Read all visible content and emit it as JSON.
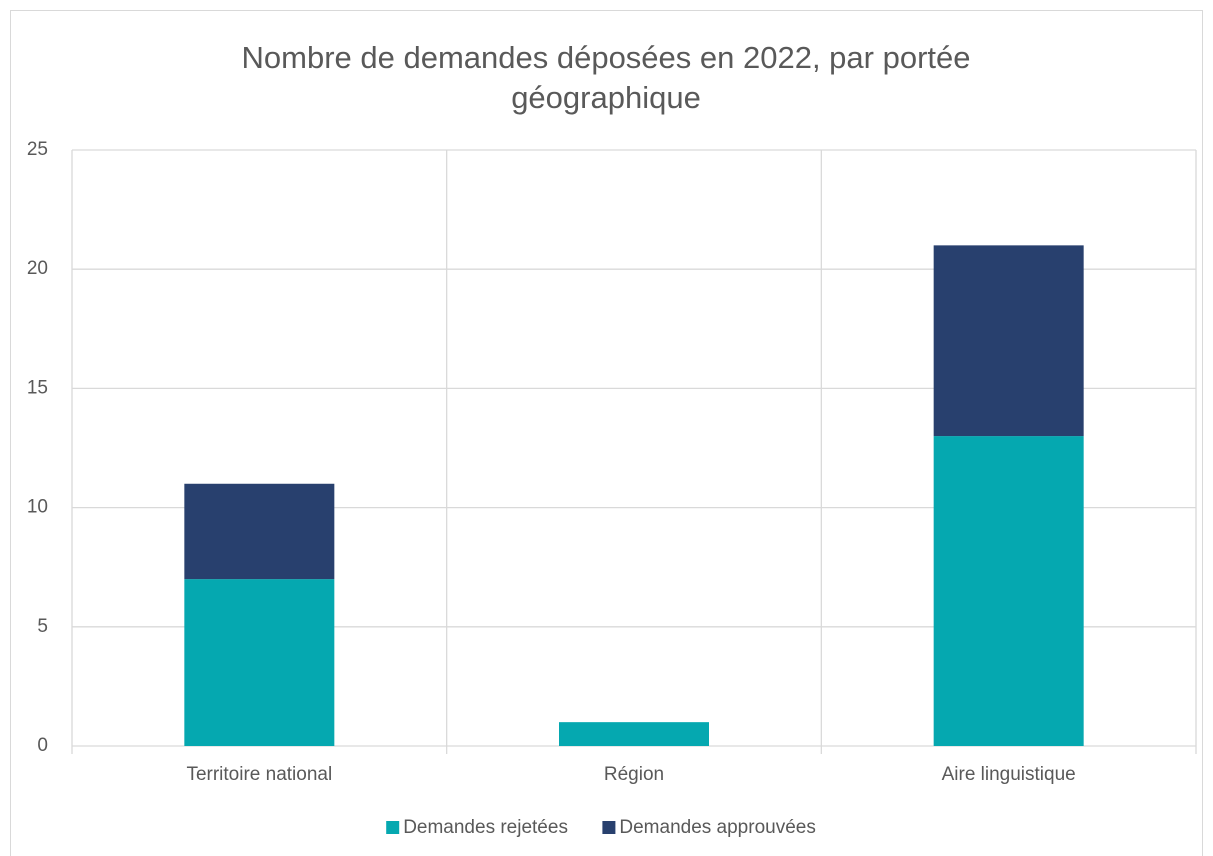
{
  "chart_data": {
    "type": "stacked_bar",
    "title": "Nombre de demandes déposées en 2022, par portée géographique",
    "categories": [
      "Territoire national",
      "Région",
      "Aire linguistique"
    ],
    "series": [
      {
        "name": "Demandes rejetées",
        "color": "#05a8b0",
        "values": [
          7,
          1,
          13
        ]
      },
      {
        "name": "Demandes approuvées",
        "color": "#28406e",
        "values": [
          4,
          0,
          8
        ]
      }
    ],
    "ylim": [
      0,
      25
    ],
    "yticks": [
      0,
      5,
      10,
      15,
      20,
      25
    ],
    "grid": true,
    "legend": "bottom"
  }
}
